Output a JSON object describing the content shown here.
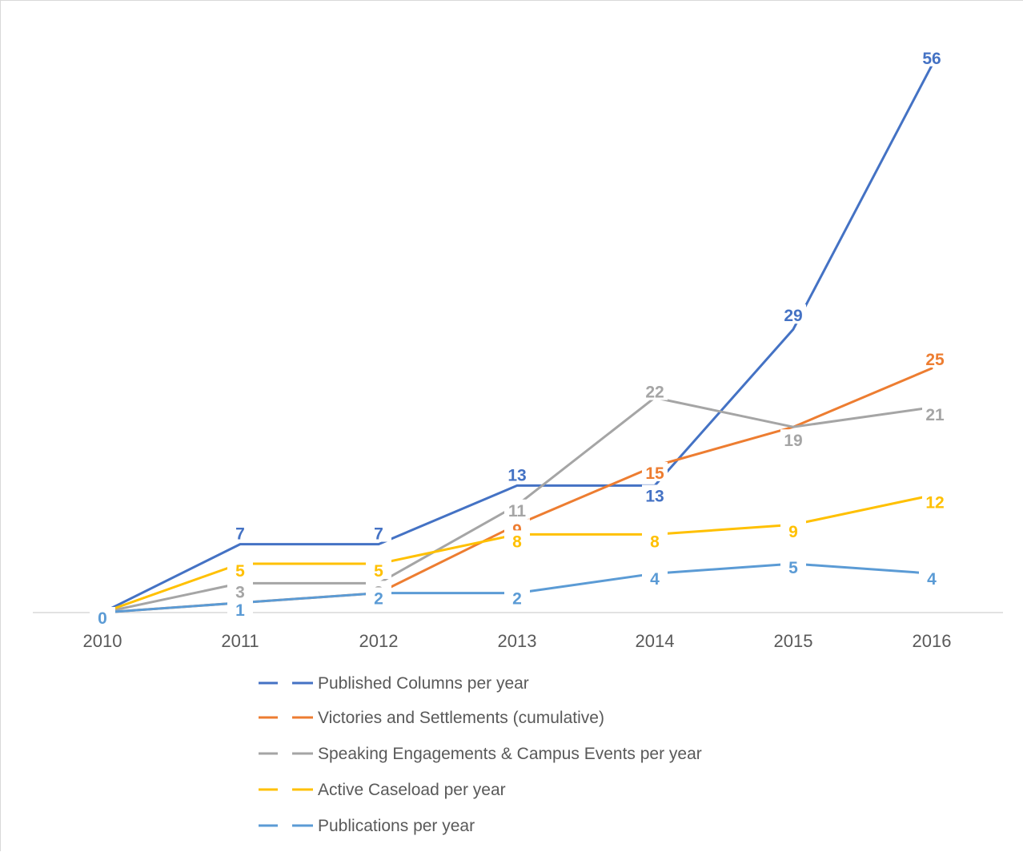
{
  "chart_data": {
    "type": "line",
    "categories": [
      "2010",
      "2011",
      "2012",
      "2013",
      "2014",
      "2015",
      "2016"
    ],
    "ylim": [
      0,
      60
    ],
    "grid": false,
    "legend": "bottom",
    "series": [
      {
        "name": "Published Columns per year",
        "color": "#4472c4",
        "values": [
          0,
          7,
          7,
          13,
          13,
          29,
          56
        ],
        "segments": [
          [
            0,
            1
          ],
          [
            1,
            2
          ],
          [
            2,
            3
          ],
          [
            3,
            4
          ],
          [
            4,
            5
          ],
          [
            5,
            6
          ]
        ],
        "special_segments": [
          [
            4,
            5,
            15
          ]
        ]
      },
      {
        "name": "Victories and Settlements (cumulative)",
        "color": "#ed7d31",
        "values": [
          0,
          1,
          2,
          9,
          15,
          19,
          25
        ]
      },
      {
        "name": "Speaking Engagements & Campus Events per year",
        "color": "#a5a5a5",
        "values": [
          0,
          3,
          3,
          11,
          22,
          19,
          21
        ]
      },
      {
        "name": "Active Caseload per year",
        "color": "#ffc000",
        "values": [
          0,
          5,
          5,
          8,
          8,
          9,
          12
        ]
      },
      {
        "name": "Publications per year",
        "color": "#5b9bd5",
        "values": [
          0,
          1,
          2,
          2,
          4,
          5,
          4
        ]
      }
    ],
    "data_labels": [
      {
        "series": 0,
        "index": 1,
        "text": "7"
      },
      {
        "series": 0,
        "index": 2,
        "text": "7"
      },
      {
        "series": 0,
        "index": 3,
        "text": "13"
      },
      {
        "series": 0,
        "index": 4,
        "text": "13"
      },
      {
        "series": 0,
        "index": 5,
        "text": "29"
      },
      {
        "series": 0,
        "index": 6,
        "text": "56"
      },
      {
        "series": 1,
        "index": 3,
        "text": "9"
      },
      {
        "series": 1,
        "index": 4,
        "text": "15"
      },
      {
        "series": 1,
        "index": 6,
        "text": "25"
      },
      {
        "series": 2,
        "index": 1,
        "text": "3"
      },
      {
        "series": 2,
        "index": 2,
        "text": "3"
      },
      {
        "series": 2,
        "index": 3,
        "text": "11"
      },
      {
        "series": 2,
        "index": 4,
        "text": "22"
      },
      {
        "series": 2,
        "index": 5,
        "text": "19"
      },
      {
        "series": 2,
        "index": 6,
        "text": "21"
      },
      {
        "series": 3,
        "index": 1,
        "text": "5"
      },
      {
        "series": 3,
        "index": 2,
        "text": "5"
      },
      {
        "series": 3,
        "index": 3,
        "text": "8"
      },
      {
        "series": 3,
        "index": 4,
        "text": "8"
      },
      {
        "series": 3,
        "index": 5,
        "text": "9"
      },
      {
        "series": 3,
        "index": 6,
        "text": "12"
      },
      {
        "series": 4,
        "index": 0,
        "text": "0"
      },
      {
        "series": 4,
        "index": 1,
        "text": "1"
      },
      {
        "series": 4,
        "index": 2,
        "text": "2"
      },
      {
        "series": 4,
        "index": 3,
        "text": "2"
      },
      {
        "series": 4,
        "index": 4,
        "text": "4"
      },
      {
        "series": 4,
        "index": 5,
        "text": "5"
      },
      {
        "series": 4,
        "index": 6,
        "text": "4"
      }
    ]
  }
}
